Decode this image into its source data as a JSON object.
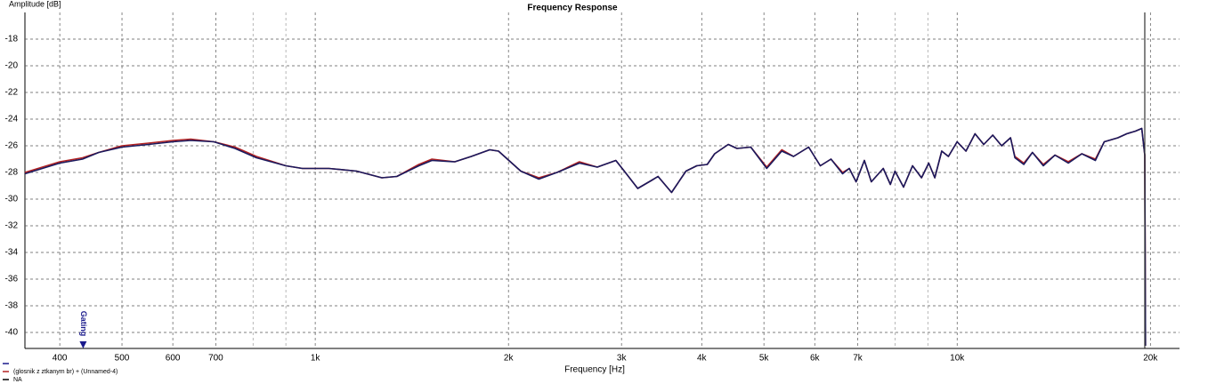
{
  "chart_data": {
    "type": "line",
    "title": "Frequency Response",
    "y_label": "Amplitude [dB]",
    "x_label": "Frequency [Hz]",
    "log_x": true,
    "grid": true,
    "xlim": [
      353,
      22200
    ],
    "ylim": [
      -41.2,
      -16
    ],
    "xticks": [
      400,
      500,
      600,
      700,
      {
        "value": 1000,
        "label": "1k"
      },
      {
        "value": 2000,
        "label": "2k"
      },
      {
        "value": 3000,
        "label": "3k"
      },
      {
        "value": 4000,
        "label": "4k"
      },
      {
        "value": 5000,
        "label": "5k"
      },
      {
        "value": 6000,
        "label": "6k"
      },
      {
        "value": 7000,
        "label": "7k"
      },
      {
        "value": 10000,
        "label": "10k"
      },
      {
        "value": 20000,
        "label": "20k"
      }
    ],
    "x_minor_grid": [
      800,
      900,
      8000,
      9000
    ],
    "yticks": [
      -18,
      -20,
      -22,
      -24,
      -26,
      -28,
      -30,
      -32,
      -34,
      -36,
      -38,
      -40
    ],
    "cursor_x": 19600,
    "annotation": {
      "x": 435,
      "label": "Gating",
      "color": "#1a1a8c"
    },
    "x": [
      353,
      400,
      434,
      460,
      500,
      550,
      600,
      640,
      695,
      750,
      810,
      900,
      955,
      1050,
      1160,
      1270,
      1340,
      1450,
      1520,
      1650,
      1750,
      1870,
      1930,
      2090,
      2230,
      2380,
      2580,
      2750,
      2940,
      3030,
      3180,
      3340,
      3420,
      3590,
      3780,
      3930,
      4080,
      4190,
      4400,
      4540,
      4770,
      5050,
      5330,
      5560,
      5870,
      6120,
      6360,
      6630,
      6790,
      6960,
      7170,
      7350,
      7670,
      7870,
      8000,
      8250,
      8520,
      8800,
      9030,
      9230,
      9460,
      9690,
      10000,
      10320,
      10660,
      11000,
      11360,
      11730,
      12110,
      12300,
      12700,
      13100,
      13620,
      14200,
      14900,
      15640,
      16420,
      16950,
      17800,
      18370,
      18960,
      19390,
      19600,
      19650
    ],
    "series": [
      {
        "name": "(glosnik z ztkanym br) + (Unnamed-4)",
        "color": "#b22222",
        "values": [
          -28.0,
          -27.2,
          -26.9,
          -26.5,
          -26.0,
          -25.8,
          -25.6,
          -25.5,
          -25.7,
          -26.1,
          -26.8,
          -27.5,
          -27.7,
          -27.7,
          -27.9,
          -28.4,
          -28.3,
          -27.4,
          -27.0,
          -27.2,
          -26.8,
          -26.3,
          -26.4,
          -27.9,
          -28.4,
          -28.0,
          -27.2,
          -27.6,
          -27.1,
          -27.9,
          -29.2,
          -28.6,
          -28.3,
          -29.5,
          -27.9,
          -27.5,
          -27.4,
          -26.6,
          -25.9,
          -26.2,
          -26.1,
          -27.6,
          -26.3,
          -26.8,
          -26.1,
          -27.5,
          -27.0,
          -28.0,
          -27.7,
          -28.7,
          -27.1,
          -28.7,
          -27.7,
          -28.9,
          -27.9,
          -29.1,
          -27.5,
          -28.4,
          -27.3,
          -28.4,
          -26.4,
          -26.8,
          -25.7,
          -26.4,
          -25.1,
          -25.9,
          -25.2,
          -26.0,
          -25.4,
          -26.8,
          -27.3,
          -26.5,
          -27.4,
          -26.7,
          -27.2,
          -26.6,
          -27.0,
          -25.7,
          -25.4,
          -25.1,
          -24.9,
          -24.7,
          -26.7,
          -41.0
        ]
      },
      {
        "name": null,
        "color": "#1a1a5e",
        "values": [
          -28.1,
          -27.3,
          -27.0,
          -26.5,
          -26.1,
          -25.9,
          -25.7,
          -25.6,
          -25.7,
          -26.2,
          -26.9,
          -27.5,
          -27.7,
          -27.7,
          -27.9,
          -28.4,
          -28.3,
          -27.5,
          -27.1,
          -27.2,
          -26.8,
          -26.3,
          -26.4,
          -27.9,
          -28.5,
          -28.0,
          -27.3,
          -27.6,
          -27.1,
          -27.9,
          -29.2,
          -28.6,
          -28.3,
          -29.5,
          -27.9,
          -27.5,
          -27.4,
          -26.6,
          -25.9,
          -26.2,
          -26.1,
          -27.7,
          -26.4,
          -26.8,
          -26.1,
          -27.5,
          -27.0,
          -28.1,
          -27.7,
          -28.7,
          -27.1,
          -28.7,
          -27.7,
          -28.9,
          -27.9,
          -29.1,
          -27.5,
          -28.4,
          -27.3,
          -28.4,
          -26.4,
          -26.8,
          -25.7,
          -26.4,
          -25.1,
          -25.9,
          -25.2,
          -26.0,
          -25.4,
          -26.9,
          -27.4,
          -26.5,
          -27.5,
          -26.7,
          -27.3,
          -26.6,
          -27.1,
          -25.7,
          -25.4,
          -25.1,
          -24.9,
          -24.7,
          -26.7,
          -41.0
        ]
      }
    ],
    "legend": [
      {
        "name": null,
        "color": "#1a1a8c"
      },
      {
        "name": "(glosnik z ztkanym br) + (Unnamed-4)",
        "color": "#b22222"
      },
      {
        "name": "NA",
        "color": "#000000"
      }
    ]
  }
}
